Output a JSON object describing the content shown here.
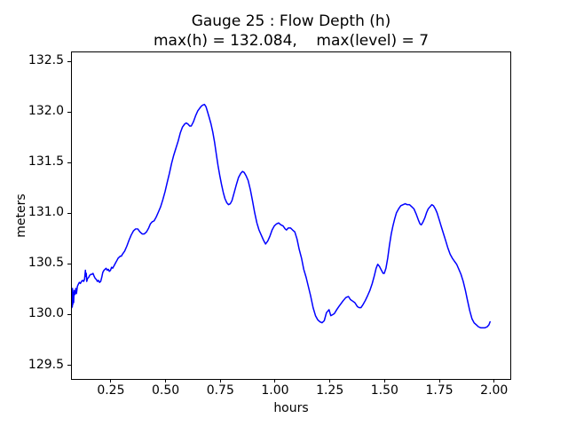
{
  "figure": {
    "background": "#ffffff",
    "text_color": "#000000"
  },
  "chart_data": {
    "type": "line",
    "title": "Gauge 25 : Flow Depth (h)",
    "subtitle": "max(h) = 132.084,    max(level) = 7",
    "xlabel": "hours",
    "ylabel": "meters",
    "max_h": 132.084,
    "max_level": 7,
    "xlim": [
      0.068,
      2.078
    ],
    "ylim": [
      129.363,
      132.6
    ],
    "grid": false,
    "legend": null,
    "x_ticks": [
      {
        "value": 0.25,
        "label": "0.25"
      },
      {
        "value": 0.5,
        "label": "0.50"
      },
      {
        "value": 0.75,
        "label": "0.75"
      },
      {
        "value": 1.0,
        "label": "1.00"
      },
      {
        "value": 1.25,
        "label": "1.25"
      },
      {
        "value": 1.5,
        "label": "1.50"
      },
      {
        "value": 1.75,
        "label": "1.75"
      },
      {
        "value": 2.0,
        "label": "2.00"
      }
    ],
    "y_ticks": [
      {
        "value": 129.5,
        "label": "129.5"
      },
      {
        "value": 130.0,
        "label": "130.0"
      },
      {
        "value": 130.5,
        "label": "130.5"
      },
      {
        "value": 131.0,
        "label": "131.0"
      },
      {
        "value": 131.5,
        "label": "131.5"
      },
      {
        "value": 132.0,
        "label": "132.0"
      },
      {
        "value": 132.5,
        "label": "132.5"
      }
    ],
    "series": [
      {
        "name": "flow-depth-h",
        "color": "#0000ff",
        "linewidth": 1.5,
        "points": [
          [
            0.068,
            130.07
          ],
          [
            0.069,
            130.2
          ],
          [
            0.07,
            130.08
          ],
          [
            0.071,
            130.26
          ],
          [
            0.072,
            130.1
          ],
          [
            0.074,
            130.22
          ],
          [
            0.076,
            130.12
          ],
          [
            0.078,
            130.24
          ],
          [
            0.082,
            130.2
          ],
          [
            0.086,
            130.26
          ],
          [
            0.089,
            130.21
          ],
          [
            0.093,
            130.28
          ],
          [
            0.097,
            130.3
          ],
          [
            0.102,
            130.32
          ],
          [
            0.107,
            130.31
          ],
          [
            0.112,
            130.33
          ],
          [
            0.117,
            130.34
          ],
          [
            0.122,
            130.33
          ],
          [
            0.126,
            130.35
          ],
          [
            0.13,
            130.44
          ],
          [
            0.132,
            130.38
          ],
          [
            0.134,
            130.41
          ],
          [
            0.136,
            130.33
          ],
          [
            0.14,
            130.36
          ],
          [
            0.145,
            130.37
          ],
          [
            0.15,
            130.39
          ],
          [
            0.155,
            130.4
          ],
          [
            0.16,
            130.4
          ],
          [
            0.165,
            130.41
          ],
          [
            0.17,
            130.38
          ],
          [
            0.175,
            130.36
          ],
          [
            0.18,
            130.35
          ],
          [
            0.185,
            130.33
          ],
          [
            0.19,
            130.34
          ],
          [
            0.195,
            130.32
          ],
          [
            0.2,
            130.33
          ],
          [
            0.205,
            130.37
          ],
          [
            0.21,
            130.42
          ],
          [
            0.215,
            130.44
          ],
          [
            0.22,
            130.45
          ],
          [
            0.225,
            130.46
          ],
          [
            0.23,
            130.44
          ],
          [
            0.235,
            130.45
          ],
          [
            0.24,
            130.43
          ],
          [
            0.245,
            130.44
          ],
          [
            0.25,
            130.47
          ],
          [
            0.255,
            130.46
          ],
          [
            0.26,
            130.48
          ],
          [
            0.265,
            130.5
          ],
          [
            0.27,
            130.52
          ],
          [
            0.275,
            130.54
          ],
          [
            0.28,
            130.56
          ],
          [
            0.285,
            130.57
          ],
          [
            0.29,
            130.58
          ],
          [
            0.295,
            130.58
          ],
          [
            0.3,
            130.6
          ],
          [
            0.31,
            130.63
          ],
          [
            0.32,
            130.68
          ],
          [
            0.33,
            130.74
          ],
          [
            0.34,
            130.79
          ],
          [
            0.35,
            130.83
          ],
          [
            0.36,
            130.85
          ],
          [
            0.37,
            130.85
          ],
          [
            0.38,
            130.82
          ],
          [
            0.39,
            130.8
          ],
          [
            0.4,
            130.8
          ],
          [
            0.41,
            130.82
          ],
          [
            0.42,
            130.86
          ],
          [
            0.428,
            130.9
          ],
          [
            0.436,
            130.92
          ],
          [
            0.445,
            130.93
          ],
          [
            0.455,
            130.97
          ],
          [
            0.465,
            131.02
          ],
          [
            0.475,
            131.07
          ],
          [
            0.485,
            131.14
          ],
          [
            0.495,
            131.22
          ],
          [
            0.505,
            131.31
          ],
          [
            0.515,
            131.4
          ],
          [
            0.525,
            131.5
          ],
          [
            0.535,
            131.58
          ],
          [
            0.545,
            131.65
          ],
          [
            0.555,
            131.72
          ],
          [
            0.565,
            131.8
          ],
          [
            0.575,
            131.86
          ],
          [
            0.585,
            131.89
          ],
          [
            0.592,
            131.9
          ],
          [
            0.6,
            131.89
          ],
          [
            0.608,
            131.87
          ],
          [
            0.615,
            131.87
          ],
          [
            0.625,
            131.91
          ],
          [
            0.635,
            131.97
          ],
          [
            0.645,
            132.02
          ],
          [
            0.655,
            132.05
          ],
          [
            0.663,
            132.07
          ],
          [
            0.67,
            132.08
          ],
          [
            0.676,
            132.084
          ],
          [
            0.683,
            132.06
          ],
          [
            0.69,
            132.01
          ],
          [
            0.698,
            131.95
          ],
          [
            0.706,
            131.89
          ],
          [
            0.714,
            131.81
          ],
          [
            0.722,
            131.71
          ],
          [
            0.73,
            131.59
          ],
          [
            0.738,
            131.48
          ],
          [
            0.746,
            131.38
          ],
          [
            0.754,
            131.29
          ],
          [
            0.762,
            131.21
          ],
          [
            0.77,
            131.15
          ],
          [
            0.778,
            131.11
          ],
          [
            0.786,
            131.09
          ],
          [
            0.794,
            131.1
          ],
          [
            0.802,
            131.13
          ],
          [
            0.812,
            131.21
          ],
          [
            0.822,
            131.29
          ],
          [
            0.832,
            131.36
          ],
          [
            0.842,
            131.4
          ],
          [
            0.85,
            131.42
          ],
          [
            0.858,
            131.41
          ],
          [
            0.866,
            131.38
          ],
          [
            0.876,
            131.33
          ],
          [
            0.886,
            131.24
          ],
          [
            0.896,
            131.13
          ],
          [
            0.906,
            131.01
          ],
          [
            0.916,
            130.91
          ],
          [
            0.926,
            130.84
          ],
          [
            0.936,
            130.79
          ],
          [
            0.946,
            130.74
          ],
          [
            0.956,
            130.7
          ],
          [
            0.966,
            130.73
          ],
          [
            0.976,
            130.78
          ],
          [
            0.986,
            130.84
          ],
          [
            0.996,
            130.88
          ],
          [
            1.006,
            130.9
          ],
          [
            1.016,
            130.91
          ],
          [
            1.026,
            130.89
          ],
          [
            1.036,
            130.88
          ],
          [
            1.046,
            130.85
          ],
          [
            1.052,
            130.84
          ],
          [
            1.06,
            130.86
          ],
          [
            1.07,
            130.86
          ],
          [
            1.08,
            130.84
          ],
          [
            1.09,
            130.82
          ],
          [
            1.1,
            130.75
          ],
          [
            1.11,
            130.65
          ],
          [
            1.121,
            130.56
          ],
          [
            1.131,
            130.45
          ],
          [
            1.142,
            130.37
          ],
          [
            1.152,
            130.28
          ],
          [
            1.162,
            130.19
          ],
          [
            1.174,
            130.07
          ],
          [
            1.185,
            129.99
          ],
          [
            1.195,
            129.95
          ],
          [
            1.205,
            129.93
          ],
          [
            1.215,
            129.92
          ],
          [
            1.225,
            129.94
          ],
          [
            1.235,
            130.02
          ],
          [
            1.247,
            130.05
          ],
          [
            1.255,
            129.99
          ],
          [
            1.263,
            130.0
          ],
          [
            1.271,
            130.01
          ],
          [
            1.282,
            130.05
          ],
          [
            1.292,
            130.08
          ],
          [
            1.302,
            130.11
          ],
          [
            1.312,
            130.14
          ],
          [
            1.324,
            130.17
          ],
          [
            1.336,
            130.18
          ],
          [
            1.345,
            130.15
          ],
          [
            1.352,
            130.14
          ],
          [
            1.365,
            130.12
          ],
          [
            1.377,
            130.08
          ],
          [
            1.385,
            130.07
          ],
          [
            1.393,
            130.07
          ],
          [
            1.403,
            130.1
          ],
          [
            1.413,
            130.14
          ],
          [
            1.424,
            130.19
          ],
          [
            1.434,
            130.24
          ],
          [
            1.445,
            130.31
          ],
          [
            1.455,
            130.39
          ],
          [
            1.463,
            130.46
          ],
          [
            1.47,
            130.5
          ],
          [
            1.478,
            130.48
          ],
          [
            1.487,
            130.44
          ],
          [
            1.495,
            130.41
          ],
          [
            1.5,
            130.41
          ],
          [
            1.508,
            130.46
          ],
          [
            1.516,
            130.56
          ],
          [
            1.524,
            130.69
          ],
          [
            1.532,
            130.8
          ],
          [
            1.54,
            130.88
          ],
          [
            1.548,
            130.95
          ],
          [
            1.556,
            131.01
          ],
          [
            1.566,
            131.05
          ],
          [
            1.576,
            131.08
          ],
          [
            1.586,
            131.09
          ],
          [
            1.596,
            131.1
          ],
          [
            1.606,
            131.09
          ],
          [
            1.616,
            131.09
          ],
          [
            1.626,
            131.07
          ],
          [
            1.636,
            131.05
          ],
          [
            1.646,
            131.0
          ],
          [
            1.656,
            130.94
          ],
          [
            1.664,
            130.9
          ],
          [
            1.67,
            130.89
          ],
          [
            1.678,
            130.92
          ],
          [
            1.686,
            130.96
          ],
          [
            1.694,
            131.01
          ],
          [
            1.702,
            131.05
          ],
          [
            1.71,
            131.07
          ],
          [
            1.718,
            131.09
          ],
          [
            1.726,
            131.08
          ],
          [
            1.734,
            131.05
          ],
          [
            1.742,
            131.01
          ],
          [
            1.752,
            130.94
          ],
          [
            1.762,
            130.87
          ],
          [
            1.772,
            130.8
          ],
          [
            1.782,
            130.73
          ],
          [
            1.792,
            130.66
          ],
          [
            1.802,
            130.6
          ],
          [
            1.812,
            130.56
          ],
          [
            1.822,
            130.53
          ],
          [
            1.832,
            130.5
          ],
          [
            1.842,
            130.45
          ],
          [
            1.852,
            130.4
          ],
          [
            1.862,
            130.33
          ],
          [
            1.872,
            130.24
          ],
          [
            1.882,
            130.14
          ],
          [
            1.892,
            130.04
          ],
          [
            1.902,
            129.96
          ],
          [
            1.912,
            129.92
          ],
          [
            1.922,
            129.9
          ],
          [
            1.932,
            129.88
          ],
          [
            1.942,
            129.87
          ],
          [
            1.952,
            129.87
          ],
          [
            1.962,
            129.87
          ],
          [
            1.972,
            129.88
          ],
          [
            1.98,
            129.9
          ],
          [
            1.985,
            129.93
          ]
        ]
      }
    ]
  }
}
